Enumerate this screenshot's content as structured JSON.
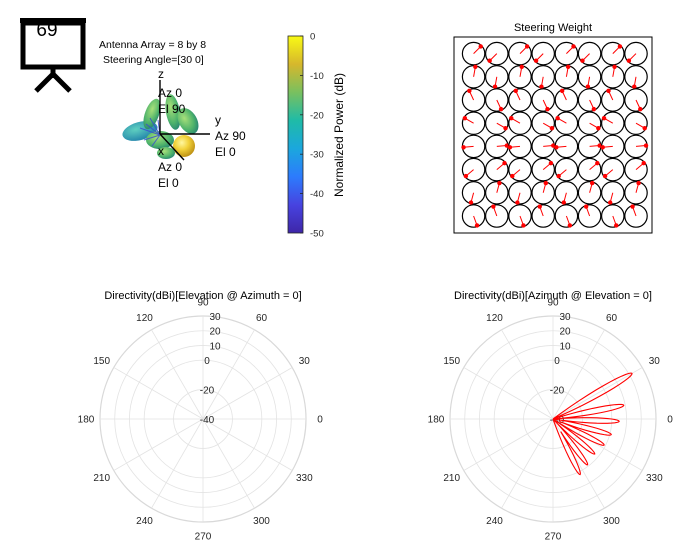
{
  "slide_badge": {
    "number": "69",
    "icon": "projector-screen-icon"
  },
  "pattern_3d": {
    "annotation": [
      "Antenna Array = 8 by 8",
      "Steering Angle=[30 0]"
    ],
    "axes": [
      {
        "axis": "z",
        "lines": [
          "z",
          "Az 0",
          "El 90"
        ]
      },
      {
        "axis": "y",
        "lines": [
          "y",
          "Az 90",
          "El 0"
        ]
      },
      {
        "axis": "x",
        "lines": [
          "x",
          "Az 0",
          "El 0"
        ]
      }
    ]
  },
  "colorbar": {
    "label": "Normalized Power (dB)",
    "ticks": [
      "0",
      "-10",
      "-20",
      "-30",
      "-40",
      "-50"
    ],
    "range": [
      -50,
      0
    ],
    "colormap": [
      "#3e26a8",
      "#4743e0",
      "#2c7bfd",
      "#1ba7dd",
      "#1fbba7",
      "#79c05f",
      "#d6b72c",
      "#f9fa14"
    ]
  },
  "steering": {
    "title": "Steering Weight",
    "rows": 8,
    "cols": 8,
    "phase_step_deg": 180,
    "marker_color": "#ff0000"
  },
  "chart_data": [
    {
      "type": "polar-line",
      "title": "Directivity(dBi)[Elevation @ Azimuth = 0]",
      "angle_ticks": [
        "90",
        "60",
        "30",
        "0",
        "330",
        "300",
        "270",
        "240",
        "210",
        "180",
        "150",
        "120"
      ],
      "radial_ticks": [
        "30",
        "20",
        "10",
        "0",
        "-20",
        "-40"
      ],
      "rlim": [
        -40,
        30
      ],
      "series": []
    },
    {
      "type": "polar-line",
      "title": "Directivity(dBi)[Azimuth @ Elevation = 0]",
      "angle_ticks": [
        "90",
        "60",
        "30",
        "0",
        "330",
        "300",
        "270",
        "240",
        "210",
        "180",
        "150",
        "120"
      ],
      "radial_ticks": [
        "30",
        "20",
        "10",
        "0",
        "-20",
        "-40"
      ],
      "rlim": [
        -40,
        30
      ],
      "series": [
        {
          "color": "#ff0000",
          "lobes": [
            {
              "center": 30,
              "peak": 22
            },
            {
              "center": 11,
              "peak": 9
            },
            {
              "center": -2,
              "peak": 5
            },
            {
              "center": -15,
              "peak": 1
            },
            {
              "center": -27,
              "peak": -1
            },
            {
              "center": -40,
              "peak": -3
            },
            {
              "center": -53,
              "peak": -1
            },
            {
              "center": -64,
              "peak": 2
            }
          ]
        }
      ]
    }
  ]
}
